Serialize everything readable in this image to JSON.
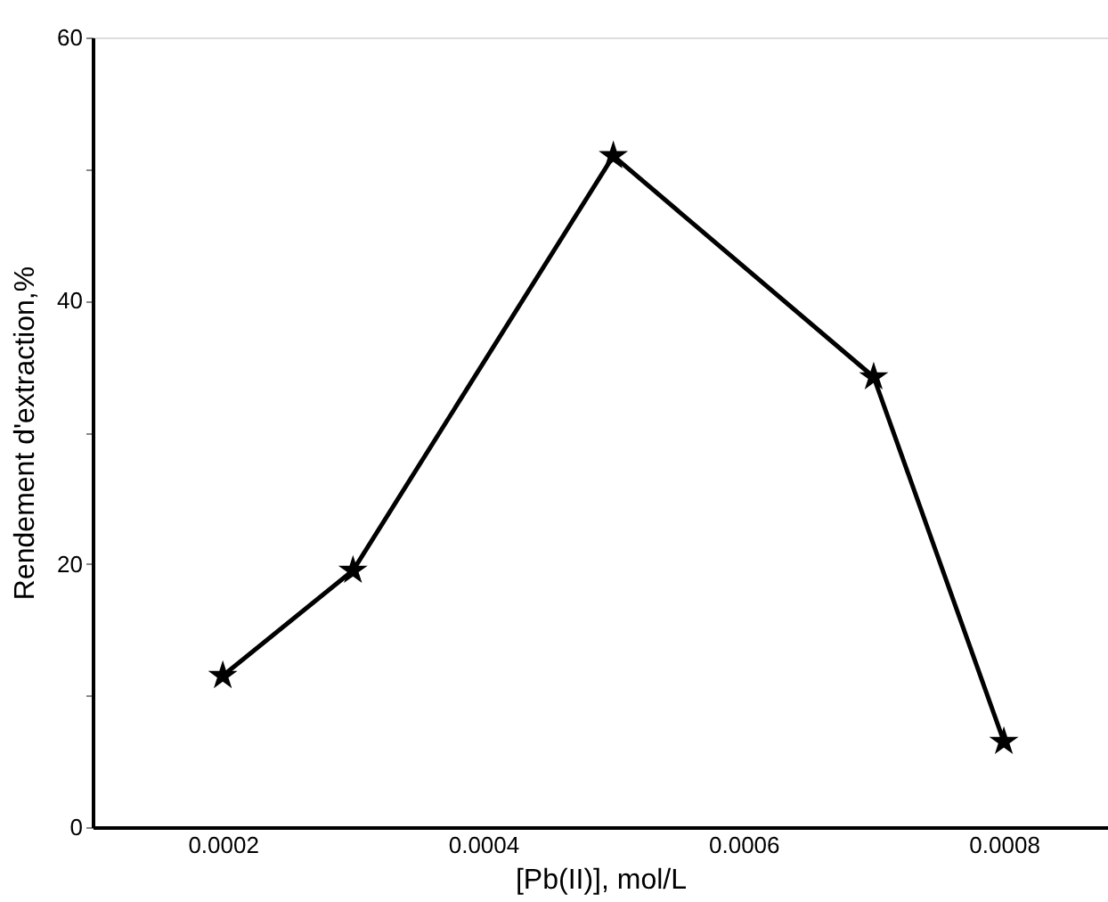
{
  "chart_data": {
    "type": "line",
    "xlabel": "[Pb(II)], mol/L",
    "ylabel": "Rendement d'extraction,%",
    "x": [
      0.0002,
      0.0003,
      0.0005,
      0.0007,
      0.0008
    ],
    "series": [
      {
        "color": "#000000",
        "values": [
          11.5,
          19.5,
          51,
          34.2,
          6.5
        ]
      }
    ],
    "xlim": [
      0.0001,
      0.00088
    ],
    "xticks": [
      0.0002,
      0.0004,
      0.0006,
      0.0008
    ],
    "ylim": [
      0,
      60
    ],
    "yticks": [
      0,
      {
        "value": 10,
        "label": null
      },
      20,
      {
        "value": 30,
        "label": null
      },
      40,
      {
        "value": 50,
        "label": null
      },
      60
    ],
    "grid": false,
    "marker": "star",
    "line_style": "solid"
  }
}
